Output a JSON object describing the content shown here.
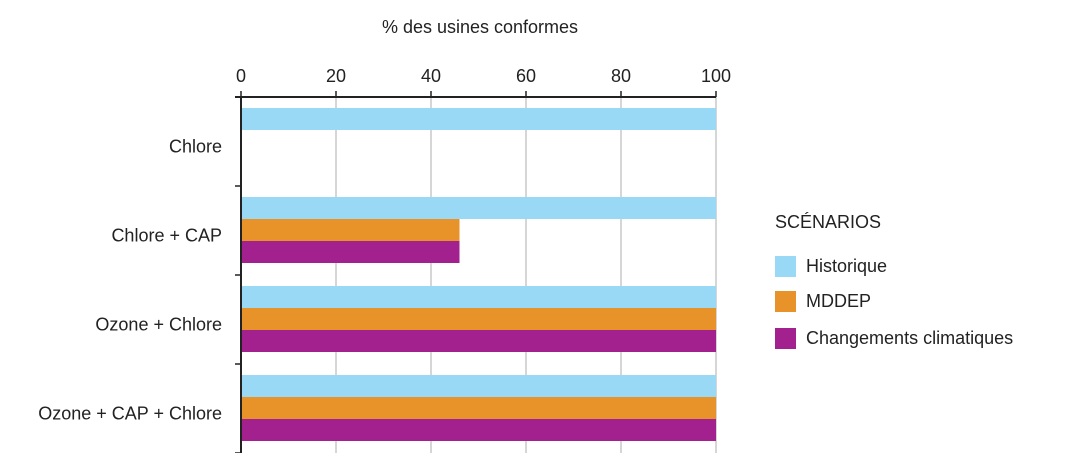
{
  "chart_data": {
    "type": "hbar",
    "title": "% des usines conformes",
    "categories": [
      "Chlore",
      "Chlore + CAP",
      "Ozone + Chlore",
      "Ozone + CAP + Chlore"
    ],
    "series": [
      {
        "name": "Historique",
        "color": "#99d9f5",
        "values": [
          100,
          100,
          100,
          100
        ]
      },
      {
        "name": "MDDEP",
        "color": "#e8922a",
        "values": [
          0,
          46,
          100,
          100
        ]
      },
      {
        "name": "Changements climatiques",
        "color": "#a3218e",
        "values": [
          0,
          46,
          100,
          100
        ]
      }
    ],
    "xlim": [
      0,
      100
    ],
    "xticks": [
      0,
      20,
      40,
      60,
      80,
      100
    ],
    "grid": true,
    "legend_title": "SCÉNARIOS",
    "legend_position": "right"
  }
}
